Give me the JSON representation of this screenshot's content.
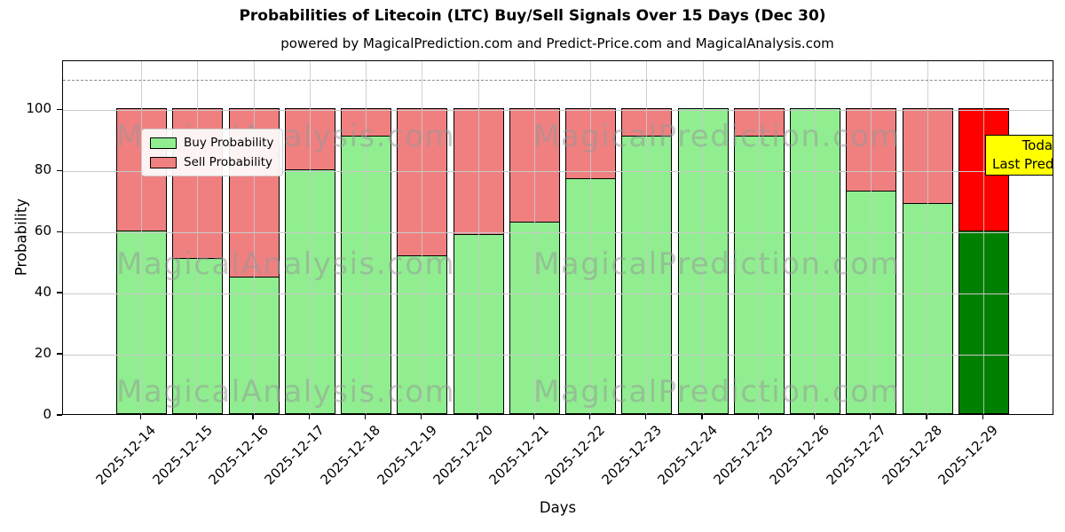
{
  "watermarks": {
    "left_text": "MagicalAnalysis.com",
    "right_text": "MagicalPrediction.com"
  },
  "annotation": {
    "lines": [
      "Today",
      "Last Prediction"
    ],
    "bg_color": "#ffff00"
  },
  "chart_data": {
    "type": "bar",
    "stacked": true,
    "title": "Probabilities of Litecoin (LTC) Buy/Sell Signals Over 15 Days (Dec 30)",
    "subtitle": "powered by MagicalPrediction.com and Predict-Price.com and MagicalAnalysis.com",
    "xlabel": "Days",
    "ylabel": "Probability",
    "ylim": [
      0,
      116
    ],
    "yticks": [
      0,
      20,
      40,
      60,
      80,
      100
    ],
    "threshold_line": 110,
    "grid": true,
    "legend_position": "upper left",
    "categories": [
      "2025-12-14",
      "2025-12-15",
      "2025-12-16",
      "2025-12-17",
      "2025-12-18",
      "2025-12-19",
      "2025-12-20",
      "2025-12-21",
      "2025-12-22",
      "2025-12-23",
      "2025-12-24",
      "2025-12-25",
      "2025-12-26",
      "2025-12-27",
      "2025-12-28",
      "2025-12-29"
    ],
    "series": [
      {
        "name": "Buy Probability",
        "color": "#90EE90",
        "today_color": "#008000",
        "values": [
          60,
          51,
          45,
          80,
          91,
          52,
          59,
          63,
          77,
          91,
          100,
          91,
          100,
          73,
          69,
          60
        ]
      },
      {
        "name": "Sell Probability",
        "color": "#F08080",
        "today_color": "#FF0000",
        "values": [
          40,
          49,
          55,
          20,
          9,
          48,
          41,
          37,
          23,
          9,
          0,
          9,
          0,
          27,
          31,
          40
        ]
      }
    ]
  }
}
